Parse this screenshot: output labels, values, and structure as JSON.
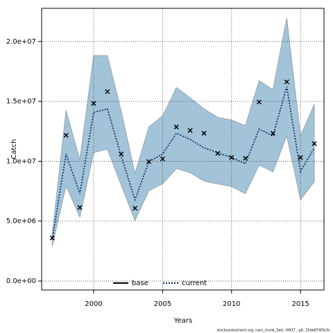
{
  "chart_data": {
    "type": "band-line",
    "x_label": "Years",
    "y_label": "Catch",
    "footer": "stockassessment.org, nam_monk_3ed, r9937 , git: 25de874f3c0c",
    "x": [
      1997,
      1998,
      1999,
      2000,
      2001,
      2002,
      2003,
      2004,
      2005,
      2006,
      2007,
      2008,
      2009,
      2010,
      2011,
      2012,
      2013,
      2014,
      2015,
      2016
    ],
    "observed": {
      "color": "#000000",
      "values": [
        3590000,
        12170000,
        6140000,
        14830000,
        15820000,
        10600000,
        6080000,
        9970000,
        10200000,
        12860000,
        12570000,
        12340000,
        10660000,
        10310000,
        10250000,
        14950000,
        12340000,
        16630000,
        10310000,
        11470000
      ]
    },
    "band": {
      "color": "#a3c4d8",
      "upper": [
        3940000,
        14250000,
        10140000,
        18830000,
        18830000,
        14190000,
        8980000,
        12860000,
        13790000,
        16160000,
        15300000,
        14370000,
        13670000,
        13440000,
        12980000,
        16740000,
        15990000,
        21960000,
        12110000,
        14770000
      ],
      "lower": [
        2900000,
        7940000,
        5330000,
        10720000,
        11000000,
        8000000,
        5040000,
        7530000,
        8110000,
        9390000,
        9040000,
        8340000,
        8110000,
        7880000,
        7300000,
        9680000,
        9100000,
        12110000,
        6780000,
        8290000
      ]
    },
    "series": [
      {
        "name": "current",
        "color": "#00205b",
        "style": "dotted",
        "values": [
          3480000,
          10600000,
          7300000,
          14080000,
          14370000,
          10430000,
          6780000,
          9970000,
          10600000,
          12340000,
          11820000,
          11120000,
          10720000,
          10310000,
          9790000,
          12690000,
          12110000,
          16220000,
          9150000,
          11120000
        ]
      }
    ],
    "legend": [
      {
        "name": "base",
        "color": "#000000",
        "style": "solid"
      },
      {
        "name": "current",
        "color": "#00205b",
        "style": "dotted"
      }
    ],
    "xlim": [
      1996.23,
      2016.7
    ],
    "ylim": [
      -750000,
      22770000
    ],
    "xticks": [
      2000,
      2005,
      2010,
      2015
    ],
    "yticks": [
      {
        "value": 0,
        "label": "0.0e+00"
      },
      {
        "value": 5000000,
        "label": "5.0e+06"
      },
      {
        "value": 10000000,
        "label": "1.0e+07"
      },
      {
        "value": 15000000,
        "label": "1.5e+07"
      },
      {
        "value": 20000000,
        "label": "2.0e+07"
      }
    ],
    "grid": true
  }
}
